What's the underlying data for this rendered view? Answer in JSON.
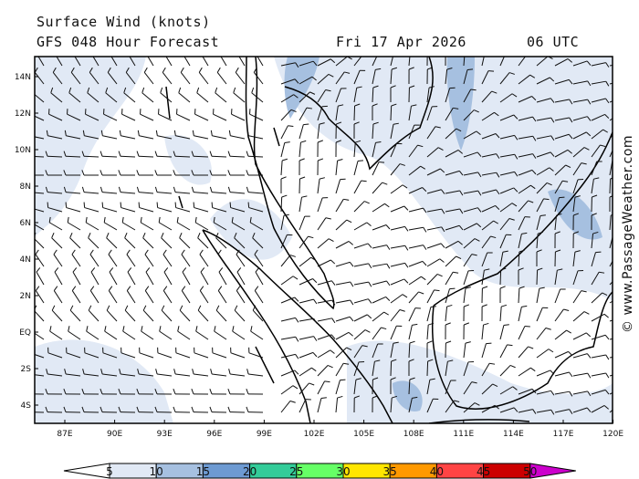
{
  "header": {
    "title": "Surface Wind (knots)",
    "model": "GFS 048 Hour Forecast",
    "date": "Fri 17 Apr 2026",
    "time": "06 UTC"
  },
  "watermark": "© www.PassageWeather.com",
  "lat_labels": [
    "14N",
    "12N",
    "10N",
    "8N",
    "6N",
    "4N",
    "2N",
    "EQ",
    "2S",
    "4S"
  ],
  "lon_labels": [
    "87E",
    "90E",
    "93E",
    "96E",
    "99E",
    "102E",
    "105E",
    "108E",
    "111E",
    "114E",
    "117E",
    "120E"
  ],
  "colorbar": {
    "unit": "knots",
    "labels": [
      "5",
      "10",
      "15",
      "20",
      "25",
      "30",
      "35",
      "40",
      "45",
      "50"
    ],
    "colors": [
      "#e1e9f5",
      "#a6c0e0",
      "#6d9ad2",
      "#33cc99",
      "#66ff66",
      "#ffe600",
      "#ff9900",
      "#ff4444",
      "#cc0000",
      "#cc00cc"
    ]
  }
}
